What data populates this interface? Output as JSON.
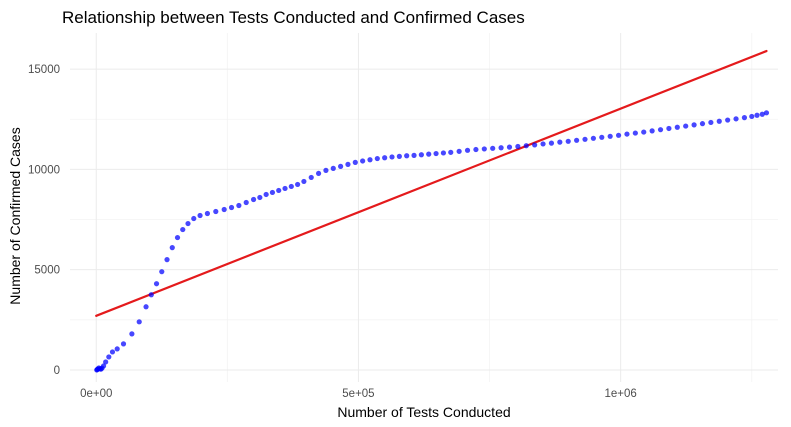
{
  "chart_data": {
    "type": "scatter",
    "title": "Relationship between Tests Conducted and Confirmed Cases",
    "xlabel": "Number of Tests Conducted",
    "ylabel": "Number of Confirmed Cases",
    "xlim": [
      -50000,
      1300000
    ],
    "ylim": [
      -600,
      16800
    ],
    "x_ticks": [
      {
        "value": 0,
        "label": "0e+00"
      },
      {
        "value": 500000,
        "label": "5e+05"
      },
      {
        "value": 1000000,
        "label": "1e+06"
      }
    ],
    "y_ticks": [
      {
        "value": 0,
        "label": "0"
      },
      {
        "value": 5000,
        "label": "5000"
      },
      {
        "value": 10000,
        "label": "10000"
      },
      {
        "value": 15000,
        "label": "15000"
      }
    ],
    "x_minor": [
      250000,
      750000,
      1250000
    ],
    "y_minor": [
      2500,
      7500,
      12500
    ],
    "grid": true,
    "legend": "none",
    "colors": {
      "points": "#0000ff",
      "trend": "#e41a1c"
    },
    "points": [
      [
        1000,
        0
      ],
      [
        2000,
        20
      ],
      [
        3000,
        50
      ],
      [
        5000,
        100
      ],
      [
        7000,
        60
      ],
      [
        9000,
        40
      ],
      [
        11000,
        90
      ],
      [
        14000,
        200
      ],
      [
        18000,
        400
      ],
      [
        24000,
        650
      ],
      [
        31000,
        900
      ],
      [
        40000,
        1050
      ],
      [
        52000,
        1300
      ],
      [
        68000,
        1800
      ],
      [
        82000,
        2400
      ],
      [
        95000,
        3150
      ],
      [
        105000,
        3750
      ],
      [
        115000,
        4300
      ],
      [
        125000,
        4900
      ],
      [
        135000,
        5500
      ],
      [
        145000,
        6100
      ],
      [
        155000,
        6600
      ],
      [
        165000,
        7000
      ],
      [
        175000,
        7300
      ],
      [
        186000,
        7550
      ],
      [
        198000,
        7700
      ],
      [
        212000,
        7800
      ],
      [
        228000,
        7900
      ],
      [
        244000,
        8000
      ],
      [
        258000,
        8100
      ],
      [
        272000,
        8200
      ],
      [
        286000,
        8350
      ],
      [
        300000,
        8500
      ],
      [
        312000,
        8600
      ],
      [
        324000,
        8750
      ],
      [
        336000,
        8850
      ],
      [
        348000,
        8950
      ],
      [
        360000,
        9050
      ],
      [
        372000,
        9150
      ],
      [
        384000,
        9250
      ],
      [
        396000,
        9400
      ],
      [
        410000,
        9600
      ],
      [
        424000,
        9800
      ],
      [
        438000,
        9950
      ],
      [
        452000,
        10050
      ],
      [
        466000,
        10150
      ],
      [
        480000,
        10250
      ],
      [
        494000,
        10350
      ],
      [
        508000,
        10420
      ],
      [
        522000,
        10480
      ],
      [
        536000,
        10540
      ],
      [
        550000,
        10580
      ],
      [
        564000,
        10620
      ],
      [
        578000,
        10650
      ],
      [
        592000,
        10680
      ],
      [
        606000,
        10700
      ],
      [
        620000,
        10730
      ],
      [
        634000,
        10760
      ],
      [
        648000,
        10790
      ],
      [
        662000,
        10820
      ],
      [
        676000,
        10850
      ],
      [
        692000,
        10900
      ],
      [
        708000,
        10950
      ],
      [
        724000,
        10990
      ],
      [
        740000,
        11020
      ],
      [
        756000,
        11050
      ],
      [
        772000,
        11080
      ],
      [
        788000,
        11110
      ],
      [
        804000,
        11140
      ],
      [
        820000,
        11180
      ],
      [
        836000,
        11220
      ],
      [
        852000,
        11270
      ],
      [
        868000,
        11310
      ],
      [
        884000,
        11360
      ],
      [
        900000,
        11400
      ],
      [
        916000,
        11450
      ],
      [
        932000,
        11500
      ],
      [
        948000,
        11550
      ],
      [
        964000,
        11600
      ],
      [
        980000,
        11650
      ],
      [
        996000,
        11700
      ],
      [
        1012000,
        11760
      ],
      [
        1028000,
        11810
      ],
      [
        1044000,
        11860
      ],
      [
        1060000,
        11920
      ],
      [
        1076000,
        11980
      ],
      [
        1092000,
        12040
      ],
      [
        1108000,
        12100
      ],
      [
        1124000,
        12160
      ],
      [
        1140000,
        12220
      ],
      [
        1156000,
        12280
      ],
      [
        1172000,
        12340
      ],
      [
        1188000,
        12400
      ],
      [
        1204000,
        12460
      ],
      [
        1220000,
        12520
      ],
      [
        1236000,
        12580
      ],
      [
        1250000,
        12640
      ],
      [
        1260000,
        12700
      ],
      [
        1270000,
        12750
      ],
      [
        1278000,
        12820
      ]
    ],
    "trend_line": [
      [
        0,
        2700
      ],
      [
        1278000,
        15900
      ]
    ]
  }
}
